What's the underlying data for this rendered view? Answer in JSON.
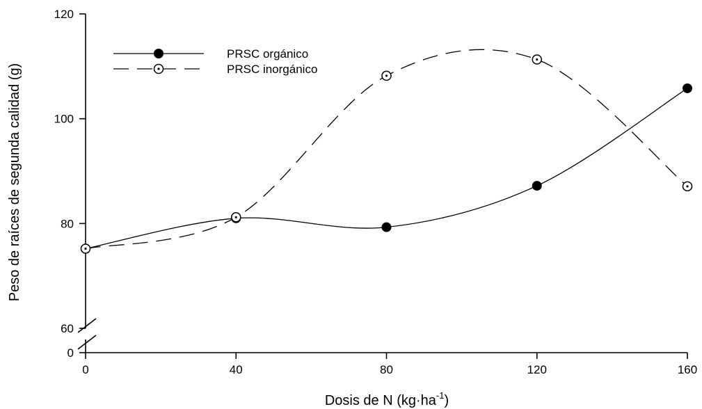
{
  "chart_data": {
    "type": "line",
    "title": "",
    "xlabel": "Dosis de N (kg·ha",
    "xlabel_sup": "-1",
    "xlabel_end": ")",
    "ylabel": "Peso de raíces de segunda calidad (g)",
    "x": [
      0,
      40,
      80,
      120,
      160
    ],
    "xticks": [
      "0",
      "40",
      "80",
      "120",
      "160"
    ],
    "xlim": [
      0,
      160
    ],
    "yticks": [
      "60",
      "80",
      "100",
      "120"
    ],
    "ybreak_label": "0",
    "ylim": [
      60,
      120
    ],
    "axis_break": true,
    "grid": false,
    "legend_position": "top-left",
    "series": [
      {
        "name": "PRSC orgánico",
        "marker": "filled-circle",
        "line_style": "solid",
        "color": "#000000",
        "values": [
          75.2,
          81.0,
          79.3,
          87.2,
          105.8
        ]
      },
      {
        "name": "PRSC inorgánico",
        "marker": "dotted-open-circle",
        "line_style": "dashed",
        "color": "#000000",
        "values": [
          75.2,
          81.2,
          108.2,
          111.3,
          87.1
        ]
      }
    ]
  }
}
